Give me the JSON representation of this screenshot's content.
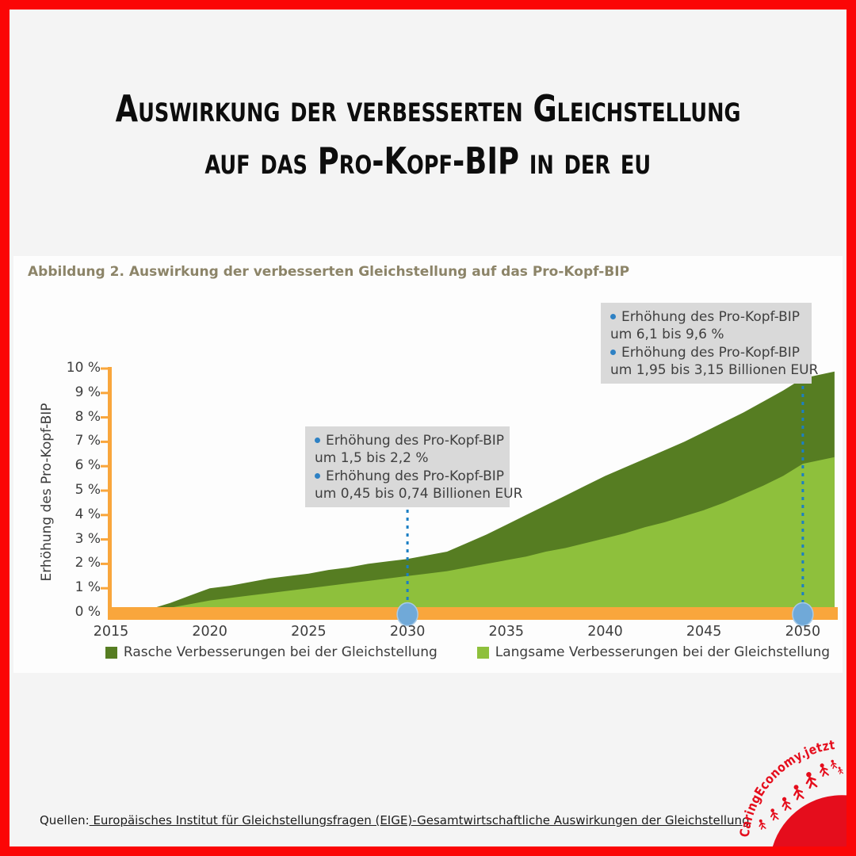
{
  "header": {
    "title_line1": "Auswirkung der verbesserten Gleichstellung",
    "title_line2": "auf das Pro-Kopf-BIP in der eu"
  },
  "figure": {
    "caption": "Abbildung 2. Auswirkung der verbesserten Gleichstellung auf das Pro-Kopf-BIP",
    "annotations": [
      {
        "year": 2030,
        "rows": [
          {
            "bullet": true,
            "text": "Erhöhung des Pro-Kopf-BIP"
          },
          {
            "bullet": false,
            "text": "um 1,5 bis 2,2 %"
          },
          {
            "bullet": true,
            "text": "Erhöhung des Pro-Kopf-BIP"
          },
          {
            "bullet": false,
            "text": "um 0,45 bis 0,74 Billionen EUR"
          }
        ]
      },
      {
        "year": 2050,
        "rows": [
          {
            "bullet": true,
            "text": "Erhöhung des Pro-Kopf-BIP"
          },
          {
            "bullet": false,
            "text": "um 6,1 bis 9,6 %"
          },
          {
            "bullet": true,
            "text": "Erhöhung des Pro-Kopf-BIP"
          },
          {
            "bullet": false,
            "text": "um 1,95 bis 3,15 Billionen EUR"
          }
        ]
      }
    ]
  },
  "chart_data": {
    "type": "area",
    "title": "Abbildung 2. Auswirkung der verbesserten Gleichstellung auf das Pro-Kopf-BIP",
    "xlabel": "",
    "ylabel": "Erhöhung des Pro-Kopf-BIP",
    "ylim": [
      0,
      10
    ],
    "ytick_suffix": " %",
    "yticks": [
      0,
      1,
      2,
      3,
      4,
      5,
      6,
      7,
      8,
      9,
      10
    ],
    "xticks": [
      2015,
      2020,
      2025,
      2030,
      2035,
      2040,
      2045,
      2050
    ],
    "grid": false,
    "legend_position": "bottom",
    "x": [
      2015,
      2016,
      2017,
      2018,
      2019,
      2020,
      2021,
      2022,
      2023,
      2024,
      2025,
      2026,
      2027,
      2028,
      2029,
      2030,
      2031,
      2032,
      2033,
      2034,
      2035,
      2036,
      2037,
      2038,
      2039,
      2040,
      2041,
      2042,
      2043,
      2044,
      2045,
      2046,
      2047,
      2048,
      2049,
      2050
    ],
    "series": [
      {
        "name": "Rasche Verbesserungen bei der Gleichstellung",
        "color": "#567d22",
        "values": [
          0,
          0,
          0.15,
          0.4,
          0.7,
          1.0,
          1.1,
          1.25,
          1.4,
          1.5,
          1.6,
          1.75,
          1.85,
          2.0,
          2.1,
          2.2,
          2.35,
          2.5,
          2.85,
          3.2,
          3.6,
          4.0,
          4.4,
          4.8,
          5.2,
          5.6,
          5.95,
          6.3,
          6.65,
          7.0,
          7.4,
          7.8,
          8.2,
          8.65,
          9.1,
          9.6
        ]
      },
      {
        "name": "Langsame Verbesserungen bei der Gleichstellung",
        "color": "#8ec03c",
        "values": [
          0,
          0,
          0.1,
          0.2,
          0.35,
          0.5,
          0.6,
          0.7,
          0.8,
          0.9,
          1.0,
          1.1,
          1.2,
          1.3,
          1.4,
          1.5,
          1.6,
          1.7,
          1.85,
          2.0,
          2.15,
          2.3,
          2.5,
          2.65,
          2.85,
          3.05,
          3.25,
          3.5,
          3.7,
          3.95,
          4.2,
          4.5,
          4.85,
          5.2,
          5.6,
          6.1
        ]
      }
    ],
    "highlight_years": [
      2030,
      2050
    ]
  },
  "footer": {
    "source_prefix": "Quellen:",
    "source_link": " Europäisches Institut für Gleichstellungsfragen (EIGE)-Gesamtwirtschaftliche Auswirkungen der Gleichstellung"
  },
  "logo": {
    "text": "CaringEconomy.jetzt"
  },
  "colors": {
    "page_bg": "#f4f4f4",
    "panel_bg": "#fdfdfd",
    "border_red": "#fb0606",
    "logo_red": "#e50d1c",
    "caption_olive": "#8c8468",
    "axis_text": "#3d3d3d",
    "orange_axis": "#f9a63c",
    "annotation_bg": "#d9d9d9",
    "bullet_blue": "#2e81c4",
    "dashed_blue": "#1b7fc4",
    "marker_blue": "#70a9d8",
    "dark_green": "#567d22",
    "light_green": "#8ec03c"
  }
}
